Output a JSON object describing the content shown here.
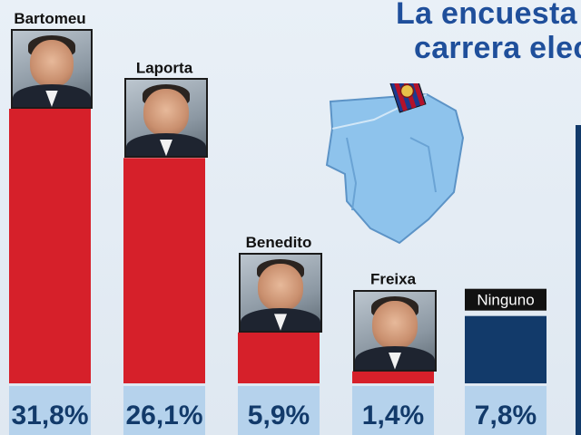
{
  "title_lines": [
    "La encuesta",
    "carrera elec"
  ],
  "chart_data": {
    "type": "bar",
    "categories": [
      "Bartomeu",
      "Laporta",
      "Benedito",
      "Freixa",
      "Ninguno"
    ],
    "values": [
      31.8,
      26.1,
      5.9,
      1.4,
      7.8
    ],
    "value_labels": [
      "31,8%",
      "26,1%",
      "5,9%",
      "1,4%",
      "7,8%"
    ],
    "ylim": [
      0,
      31.8
    ],
    "colors": {
      "Bartomeu": "#d6202a",
      "Laporta": "#d6202a",
      "Benedito": "#d6202a",
      "Freixa": "#d6202a",
      "Ninguno": "#123a6a"
    },
    "label_band_color": "#b5d2ec",
    "value_text_color": "#123a6a"
  }
}
